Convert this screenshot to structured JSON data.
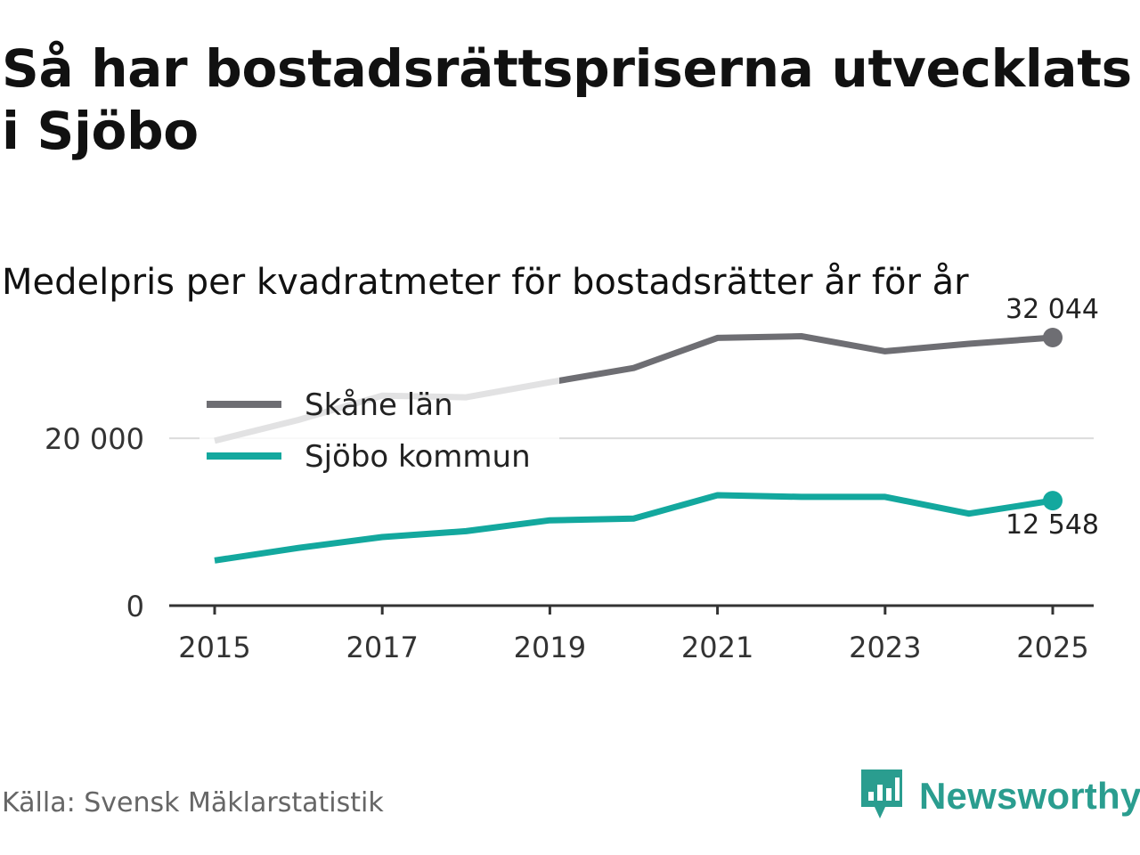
{
  "title": "Så har bostadsrättspriserna utvecklats i Sjöbo",
  "subtitle": "Medelpris per kvadratmeter för bostadsrätter år för år",
  "source": "Källa: Svensk Mäklarstatistik",
  "brand": {
    "name": "Newsworthy",
    "icon": "newsworthy-logo-icon",
    "color": "#2a9d8f"
  },
  "chart_data": {
    "type": "line",
    "x": [
      2015,
      2016,
      2017,
      2018,
      2019,
      2020,
      2021,
      2022,
      2023,
      2024,
      2025
    ],
    "series": [
      {
        "name": "Skåne län",
        "color": "#6e6e73",
        "values": [
          19700,
          22200,
          25100,
          24900,
          26700,
          28400,
          32000,
          32200,
          30400,
          31300,
          32044
        ],
        "end_label": "32 044"
      },
      {
        "name": "Sjöbo kommun",
        "color": "#13a89e",
        "values": [
          5400,
          6900,
          8200,
          8900,
          10200,
          10400,
          13200,
          13000,
          13000,
          11000,
          12548
        ],
        "end_label": "12 548"
      }
    ],
    "ylim": [
      0,
      33000
    ],
    "y_ticks": [
      0,
      20000
    ],
    "y_tick_labels": [
      "0",
      "20 000"
    ],
    "x_ticks": [
      2015,
      2017,
      2019,
      2021,
      2023,
      2025
    ],
    "x_tick_labels": [
      "2015",
      "2017",
      "2019",
      "2021",
      "2023",
      "2025"
    ],
    "grid": true,
    "legend": "top-left"
  }
}
